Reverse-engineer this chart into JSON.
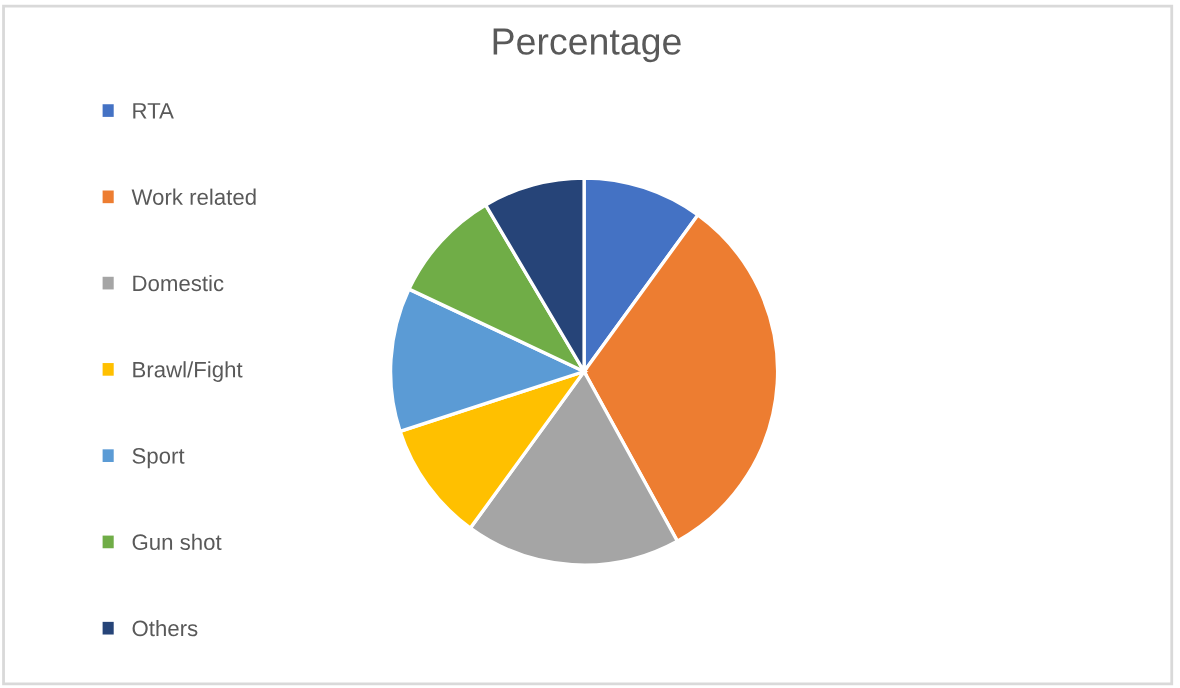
{
  "chart_data": {
    "type": "pie",
    "title": "Percentage",
    "categories": [
      "RTA",
      "Work related",
      "Domestic",
      "Brawl/Fight",
      "Sport",
      "Gun shot",
      "Others"
    ],
    "values": [
      10,
      32,
      18,
      10,
      12,
      9.5,
      8.5
    ],
    "colors": [
      "#4472c4",
      "#ed7d31",
      "#a5a5a5",
      "#ffc000",
      "#5b9bd5",
      "#70ad47",
      "#264478"
    ],
    "legend": "left"
  }
}
